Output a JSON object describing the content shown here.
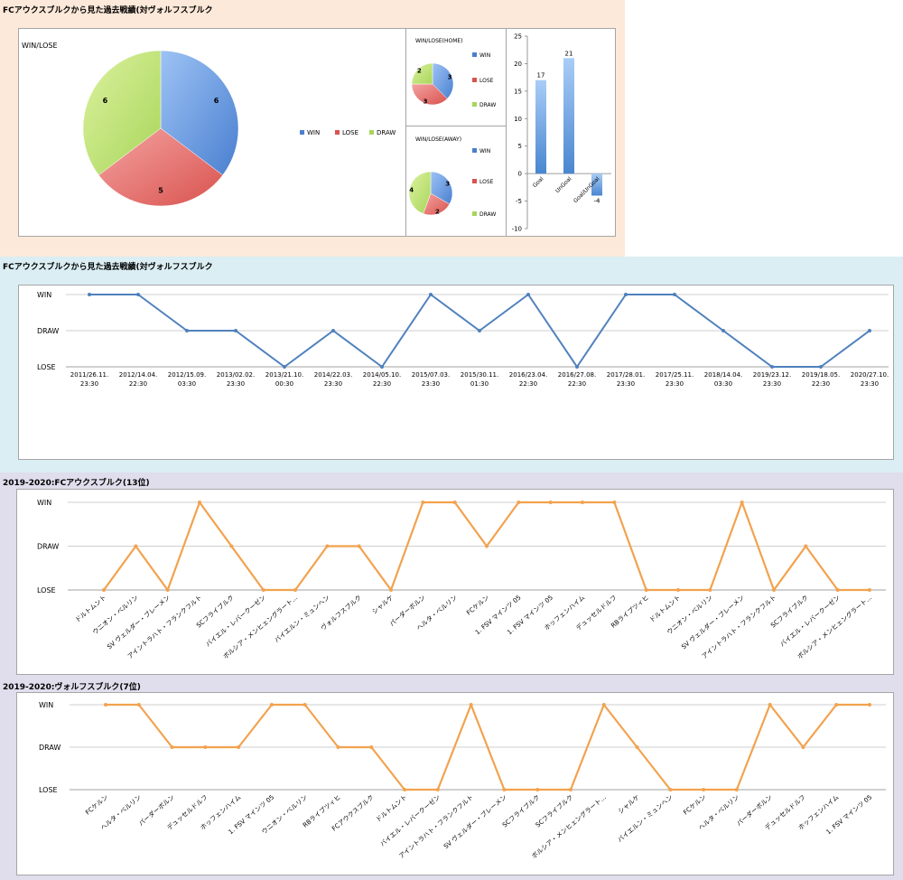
{
  "section1": {
    "title": "FCアウクスブルクから見た過去戦績(対ヴォルフスブルク",
    "bg": "#fde9d9"
  },
  "section2": {
    "title": "FCアウクスブルクから見た過去戦績(対ヴォルフスブルク",
    "bg": "#daeef3"
  },
  "section3": {
    "title": "2019-2020:FCアウクスブルク(13位)",
    "bg": "#e0ddec"
  },
  "section4": {
    "title": "2019-2020:ヴォルフスブルク(7位)",
    "bg": "#e0ddec"
  },
  "colors": {
    "win": "#4a7fd0",
    "lose": "#d9534f",
    "draw": "#a8d55a",
    "line_blue": "#4f81bd",
    "line_orange": "#f2a24e",
    "bar": "#5b9bd5"
  },
  "chart_data": [
    {
      "id": "main-pie",
      "type": "pie",
      "title": "WIN/LOSE",
      "labels": [
        "WIN",
        "LOSE",
        "DRAW"
      ],
      "values": [
        6,
        5,
        6
      ],
      "legend": "right"
    },
    {
      "id": "home-pie",
      "type": "pie",
      "title": "WIN/LOSE(HOME)",
      "labels": [
        "WIN",
        "LOSE",
        "DRAW"
      ],
      "values": [
        3,
        3,
        2
      ],
      "legend": "right"
    },
    {
      "id": "away-pie",
      "type": "pie",
      "title": "WIN/LOSE(AWAY)",
      "labels": [
        "WIN",
        "LOSE",
        "DRAW"
      ],
      "values": [
        3,
        2,
        4
      ],
      "legend": "right"
    },
    {
      "id": "goal-bar",
      "type": "bar",
      "categories": [
        "Goal",
        "UnGoal",
        "Goal/UnGoal"
      ],
      "values": [
        17,
        21,
        -4
      ],
      "ylim": [
        -10,
        25
      ],
      "yticks": [
        25,
        20,
        15,
        10,
        5,
        0,
        -5,
        -10
      ],
      "grid": false
    },
    {
      "id": "history-line",
      "type": "line",
      "levels": [
        "LOSE",
        "DRAW",
        "WIN"
      ],
      "categories": [
        [
          "2011/26.11.",
          "23:30"
        ],
        [
          "2012/14.04.",
          "22:30"
        ],
        [
          "2012/15.09.",
          "03:30"
        ],
        [
          "2013/02.02.",
          "23:30"
        ],
        [
          "2013/21.10.",
          "00:30"
        ],
        [
          "2014/22.03.",
          "23:30"
        ],
        [
          "2014/05.10.",
          "22:30"
        ],
        [
          "2015/07.03.",
          "23:30"
        ],
        [
          "2015/30.11.",
          "01:30"
        ],
        [
          "2016/23.04.",
          "22:30"
        ],
        [
          "2016/27.08.",
          "22:30"
        ],
        [
          "2017/28.01.",
          "23:30"
        ],
        [
          "2017/25.11.",
          "23:30"
        ],
        [
          "2018/14.04.",
          "03:30"
        ],
        [
          "2019/23.12.",
          "23:30"
        ],
        [
          "2019/18.05.",
          "22:30"
        ],
        [
          "2020/27.10.",
          "23:30"
        ]
      ],
      "values": [
        2,
        2,
        1,
        1,
        0,
        1,
        0,
        2,
        1,
        2,
        0,
        2,
        2,
        1,
        0,
        0,
        1
      ],
      "grid": true
    },
    {
      "id": "augsburg-season-line",
      "type": "line",
      "levels": [
        "LOSE",
        "DRAW",
        "WIN"
      ],
      "categories": [
        "ドルトムント",
        "ウニオン・ベルリン",
        "SV ヴェルダー・ブレーメン",
        "アイントラハト・フランクフルト",
        "SCフライブルク",
        "バイエル・レバークーゼン",
        "ボルシア・メンヒェングラート…",
        "バイエルン・ミュンヘン",
        "ヴォルフスブルク",
        "シャルケ",
        "パーダーボルン",
        "ヘルタ・ベルリン",
        "FCケルン",
        "1. FSV マインツ 05",
        "1. FSV マインツ 05",
        "ホッフェンハイム",
        "デュッセルドルフ",
        "RBライプツィヒ",
        "ドルトムント",
        "ウニオン・ベルリン",
        "SV ヴェルダー・ブレーメン",
        "アイントラハト・フランクフルト",
        "SCフライブルク",
        "バイエル・レバークーゼン",
        "ボルシア・メンヒェングラート…"
      ],
      "values": [
        0,
        1,
        0,
        2,
        1,
        0,
        0,
        1,
        1,
        0,
        2,
        2,
        1,
        2,
        2,
        2,
        2,
        0,
        0,
        0,
        2,
        0,
        1,
        0,
        0
      ],
      "grid": true
    },
    {
      "id": "wolfsburg-season-line",
      "type": "line",
      "levels": [
        "LOSE",
        "DRAW",
        "WIN"
      ],
      "categories": [
        "FCケルン",
        "ヘルタ・ベルリン",
        "パーダーボルン",
        "デュッセルドルフ",
        "ホッフェンハイム",
        "1. FSV マインツ 05",
        "ウニオン・ベルリン",
        "RBライプツィヒ",
        "FCアウクスブルク",
        "ドルトムント",
        "バイエル・レバークーゼン",
        "アイントラハト・フランクフルト",
        "SV ヴェルダー・ブレーメン",
        "SCフライブルク",
        "SCフライブルク",
        "ボルシア・メンヒェングラート…",
        "シャルケ",
        "バイエルン・ミュンヘン",
        "FCケルン",
        "ヘルタ・ベルリン",
        "パーダーボルン",
        "デュッセルドルフ",
        "ホッフェンハイム",
        "1. FSV マインツ 05"
      ],
      "values": [
        2,
        2,
        1,
        1,
        1,
        2,
        2,
        1,
        1,
        0,
        0,
        2,
        0,
        0,
        0,
        2,
        1,
        0,
        0,
        0,
        2,
        1,
        2,
        2
      ],
      "grid": true
    }
  ]
}
